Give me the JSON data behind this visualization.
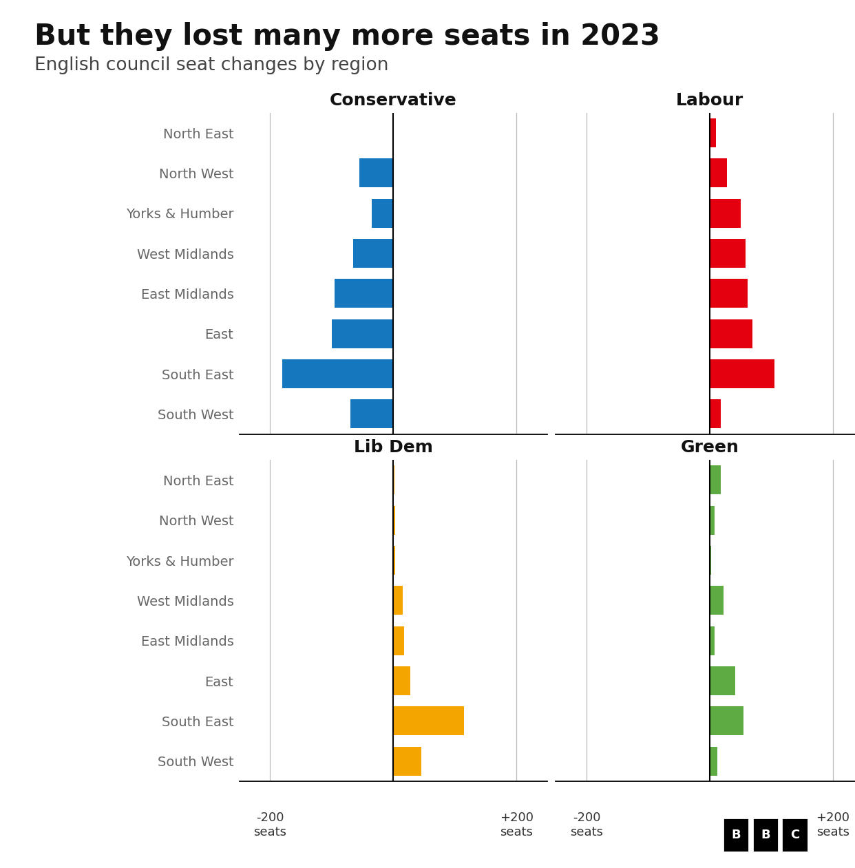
{
  "title": "But they lost many more seats in 2023",
  "subtitle": "English council seat changes by region",
  "regions": [
    "North East",
    "North West",
    "Yorks & Humber",
    "West Midlands",
    "East Midlands",
    "East",
    "South East",
    "South West"
  ],
  "conservative": [
    1,
    -55,
    -35,
    -65,
    -95,
    -100,
    -180,
    -70
  ],
  "labour": [
    10,
    28,
    50,
    58,
    62,
    70,
    105,
    18
  ],
  "libdem": [
    2,
    3,
    3,
    15,
    18,
    28,
    115,
    45
  ],
  "green": [
    18,
    8,
    2,
    22,
    8,
    42,
    55,
    12
  ],
  "conservative_color": "#1578BE",
  "labour_color": "#E4000F",
  "libdem_color": "#F5A500",
  "green_color": "#5EAA43",
  "xlim": [
    -250,
    250
  ],
  "background_color": "#ffffff",
  "title_fontsize": 30,
  "subtitle_fontsize": 19,
  "party_label_fontsize": 18,
  "region_fontsize": 14,
  "tick_fontsize": 13
}
